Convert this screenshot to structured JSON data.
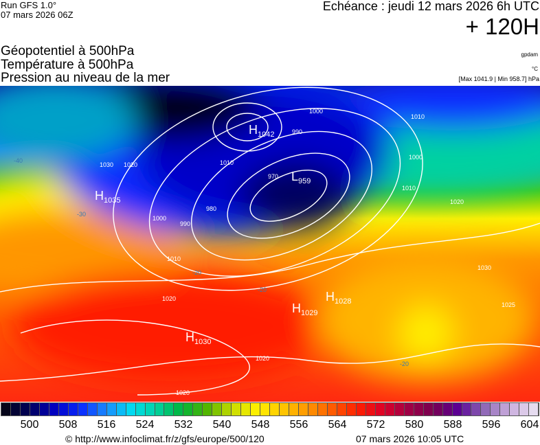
{
  "header": {
    "run": "Run GFS 1.0°",
    "run_date": "07 mars 2026 06Z",
    "echeance": "Echéance : jeudi 12 mars 2026 6h UTC",
    "lead": "+ 120H",
    "titles": [
      "Géopotentiel à 500hPa",
      "Température à 500hPa",
      "Pression au niveau de la mer"
    ],
    "units": [
      "gpdam",
      "°C",
      "[Max 1041.9 | Min 958.7] hPa"
    ]
  },
  "map": {
    "systems": [
      {
        "type": "H",
        "value": "1042"
      },
      {
        "type": "L",
        "value": "959"
      },
      {
        "type": "H",
        "value": "1035"
      },
      {
        "type": "H",
        "value": "1029"
      },
      {
        "type": "H",
        "value": "1028"
      },
      {
        "type": "H",
        "value": "1030"
      }
    ],
    "isobar_labels": [
      "1000",
      "990",
      "970",
      "980",
      "990",
      "1000",
      "1010",
      "1020",
      "1020",
      "1020",
      "1010",
      "1020",
      "1030",
      "1010",
      "1000",
      "1030",
      "1020",
      "1010",
      "1025"
    ],
    "temperature_labels": [
      "-20",
      "-20",
      "-30",
      "-40",
      "-20"
    ]
  },
  "colorbar": {
    "range_gpdam": [
      494,
      606
    ],
    "step_gpdam": 2,
    "stops": [
      "#05051a",
      "#000060",
      "#0000c8",
      "#0a2cff",
      "#1a8cff",
      "#00dcf0",
      "#00d2a0",
      "#00b43c",
      "#50b400",
      "#c8dc00",
      "#fff000",
      "#ffc800",
      "#ff9600",
      "#ff5a00",
      "#ff1e00",
      "#dc0028",
      "#a00046",
      "#780050",
      "#5a0096",
      "#8c64b4",
      "#c8aadc",
      "#e6dcf0"
    ],
    "labels": [
      "500",
      "508",
      "516",
      "524",
      "532",
      "540",
      "548",
      "556",
      "564",
      "572",
      "580",
      "588",
      "596",
      "604"
    ]
  },
  "footer": {
    "source": "© http://www.infoclimat.fr/z/gfs/europe/500/120",
    "generated": "07 mars 2026 10:05 UTC"
  }
}
